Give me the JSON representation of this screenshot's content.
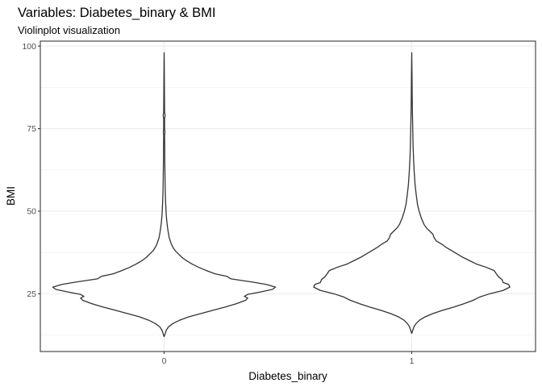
{
  "chart_data": {
    "type": "violin",
    "title": "Variables: Diabetes_binary & BMI",
    "subtitle": "Violinplot visualization",
    "xlabel": "Diabetes_binary",
    "ylabel": "BMI",
    "categories": [
      "0",
      "1"
    ],
    "ylim": [
      7.5,
      101.5
    ],
    "yticks": [
      25,
      50,
      75,
      100
    ],
    "grid": true,
    "colors": {
      "outline": "#333333",
      "fill": "#ffffff",
      "grid": "#ebebeb",
      "panel_border": "#333333"
    },
    "violins": [
      {
        "category": "0",
        "min": 12,
        "max": 98,
        "profile": [
          [
            12,
            0.0
          ],
          [
            13,
            0.01
          ],
          [
            14,
            0.02
          ],
          [
            15,
            0.04
          ],
          [
            16,
            0.08
          ],
          [
            17,
            0.14
          ],
          [
            18,
            0.22
          ],
          [
            19,
            0.33
          ],
          [
            20,
            0.44
          ],
          [
            21,
            0.55
          ],
          [
            22,
            0.65
          ],
          [
            23,
            0.73
          ],
          [
            23.7,
            0.75
          ],
          [
            24.2,
            0.72
          ],
          [
            24.8,
            0.75
          ],
          [
            25.5,
            0.86
          ],
          [
            26.3,
            0.97
          ],
          [
            27,
            1.0
          ],
          [
            27.8,
            0.92
          ],
          [
            28.5,
            0.8
          ],
          [
            29.5,
            0.6
          ],
          [
            30.3,
            0.56
          ],
          [
            31,
            0.46
          ],
          [
            32,
            0.38
          ],
          [
            33,
            0.31
          ],
          [
            34,
            0.25
          ],
          [
            35,
            0.2
          ],
          [
            36,
            0.16
          ],
          [
            37,
            0.13
          ],
          [
            38,
            0.1
          ],
          [
            39,
            0.08
          ],
          [
            40,
            0.065
          ],
          [
            42,
            0.045
          ],
          [
            44,
            0.035
          ],
          [
            46,
            0.027
          ],
          [
            48,
            0.021
          ],
          [
            50,
            0.017
          ],
          [
            53,
            0.013
          ],
          [
            56,
            0.01
          ],
          [
            60,
            0.008
          ],
          [
            65,
            0.006
          ],
          [
            70,
            0.005
          ],
          [
            73,
            0.004
          ],
          [
            74,
            0.007
          ],
          [
            75,
            0.004
          ],
          [
            78,
            0.004
          ],
          [
            79,
            0.009
          ],
          [
            80,
            0.004
          ],
          [
            85,
            0.003
          ],
          [
            90,
            0.002
          ],
          [
            95,
            0.001
          ],
          [
            98,
            0.0
          ]
        ]
      },
      {
        "category": "1",
        "min": 13,
        "max": 98,
        "profile": [
          [
            13,
            0.0
          ],
          [
            14,
            0.01
          ],
          [
            15,
            0.02
          ],
          [
            16,
            0.04
          ],
          [
            17,
            0.07
          ],
          [
            18,
            0.12
          ],
          [
            19,
            0.19
          ],
          [
            20,
            0.28
          ],
          [
            21,
            0.38
          ],
          [
            22,
            0.47
          ],
          [
            23,
            0.55
          ],
          [
            24,
            0.61
          ],
          [
            25,
            0.7
          ],
          [
            26,
            0.82
          ],
          [
            27,
            0.88
          ],
          [
            27.8,
            0.87
          ],
          [
            28.4,
            0.82
          ],
          [
            29.3,
            0.81
          ],
          [
            30.1,
            0.78
          ],
          [
            31,
            0.76
          ],
          [
            32,
            0.74
          ],
          [
            33,
            0.67
          ],
          [
            34,
            0.58
          ],
          [
            35,
            0.52
          ],
          [
            36,
            0.46
          ],
          [
            37,
            0.41
          ],
          [
            38,
            0.36
          ],
          [
            39,
            0.31
          ],
          [
            40,
            0.27
          ],
          [
            41,
            0.22
          ],
          [
            42,
            0.2
          ],
          [
            43,
            0.19
          ],
          [
            44,
            0.16
          ],
          [
            45,
            0.13
          ],
          [
            46,
            0.11
          ],
          [
            48,
            0.085
          ],
          [
            50,
            0.066
          ],
          [
            52,
            0.052
          ],
          [
            55,
            0.04
          ],
          [
            58,
            0.03
          ],
          [
            62,
            0.022
          ],
          [
            66,
            0.016
          ],
          [
            70,
            0.012
          ],
          [
            75,
            0.009
          ],
          [
            80,
            0.006
          ],
          [
            85,
            0.004
          ],
          [
            90,
            0.003
          ],
          [
            95,
            0.001
          ],
          [
            98,
            0.0
          ]
        ]
      }
    ]
  }
}
